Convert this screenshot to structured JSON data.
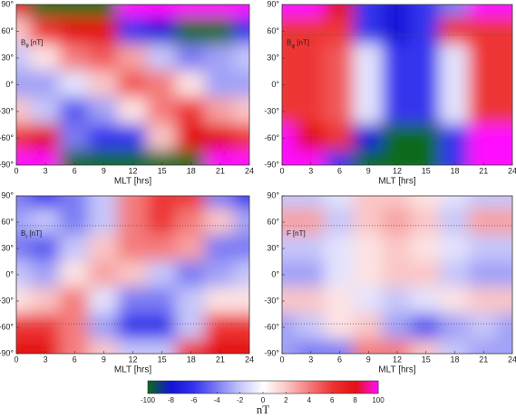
{
  "chart_data": [
    {
      "type": "heatmap",
      "title_main": "B",
      "title_sub": "θ",
      "title_unit": "[nT]",
      "xlabel": "MLT [hrs]",
      "x": [
        0,
        3,
        6,
        9,
        12,
        15,
        18,
        21,
        24
      ],
      "y": [
        90,
        60,
        30,
        0,
        -30,
        -60,
        -90
      ],
      "z": [
        [
          8,
          -100,
          -100,
          -100,
          100,
          100,
          100,
          100,
          100
        ],
        [
          2,
          6,
          8,
          8,
          -6,
          -8,
          -100,
          -100,
          -6
        ],
        [
          -2,
          1,
          4,
          5,
          3,
          -2,
          -4,
          -3,
          -2
        ],
        [
          -3,
          -3,
          -1,
          2,
          5,
          4,
          1,
          -3,
          -3
        ],
        [
          2,
          -2,
          -5,
          -3,
          1,
          4,
          6,
          3,
          2
        ],
        [
          6,
          8,
          -4,
          -6,
          -6,
          2,
          8,
          8,
          6
        ],
        [
          100,
          100,
          -100,
          -100,
          -100,
          -100,
          -100,
          100,
          100
        ]
      ],
      "xlim": [
        0,
        24
      ],
      "ylim": [
        -90,
        90
      ],
      "xticks": [
        0,
        3,
        6,
        9,
        12,
        15,
        18,
        21,
        24
      ],
      "yticks": [
        {
          "value": -90,
          "label": "-90°"
        },
        {
          "value": -60,
          "label": "-60°"
        },
        {
          "value": -30,
          "label": "-30°"
        },
        {
          "value": 0,
          "label": "0°"
        },
        {
          "value": 30,
          "label": "30°"
        },
        {
          "value": 60,
          "label": "60°"
        },
        {
          "value": 90,
          "label": "90°"
        }
      ]
    },
    {
      "type": "heatmap",
      "title_main": "B",
      "title_sub": "φ",
      "title_unit": "[nT]",
      "xlabel": "MLT [hrs]",
      "x": [
        0,
        3,
        6,
        9,
        12,
        15,
        18,
        21,
        24
      ],
      "y": [
        90,
        60,
        30,
        0,
        -30,
        -60,
        -90
      ],
      "z": [
        [
          100,
          100,
          8,
          -6,
          -8,
          -6,
          -4,
          100,
          100
        ],
        [
          6,
          6,
          6,
          -6,
          -8,
          -6,
          6,
          6,
          6
        ],
        [
          6,
          6,
          5,
          -1,
          -6,
          -6,
          -1,
          6,
          6
        ],
        [
          6,
          6,
          5,
          -1,
          -6,
          -6,
          -1,
          6,
          6
        ],
        [
          6,
          6,
          5,
          -1,
          -6,
          -6,
          -1,
          6,
          6
        ],
        [
          100,
          8,
          6,
          -8,
          -100,
          -100,
          -6,
          100,
          100
        ],
        [
          100,
          100,
          -6,
          -100,
          -100,
          -100,
          -6,
          100,
          100
        ]
      ],
      "hlines": [
        56
      ],
      "xlim": [
        0,
        24
      ],
      "ylim": [
        -90,
        90
      ],
      "xticks": [
        0,
        3,
        6,
        9,
        12,
        15,
        18,
        21,
        24
      ],
      "yticks": [
        {
          "value": -90,
          "label": "-90°"
        },
        {
          "value": -60,
          "label": "-60°"
        },
        {
          "value": -30,
          "label": "-30°"
        },
        {
          "value": 0,
          "label": "0°"
        },
        {
          "value": 30,
          "label": "30°"
        },
        {
          "value": 60,
          "label": "60°"
        },
        {
          "value": 90,
          "label": "90°"
        }
      ]
    },
    {
      "type": "heatmap",
      "title_main": "B",
      "title_sub": "r",
      "title_unit": "[nT]",
      "xlabel": "MLT [hrs]",
      "x": [
        0,
        3,
        6,
        9,
        12,
        15,
        18,
        21,
        24
      ],
      "y": [
        90,
        60,
        30,
        0,
        -30,
        -60,
        -90
      ],
      "z": [
        [
          -4,
          -6,
          -4,
          -2,
          4,
          6,
          6,
          -4,
          -6
        ],
        [
          -3,
          -2,
          -4,
          -2,
          4,
          6,
          4,
          2,
          -3
        ],
        [
          -4,
          -5,
          -2,
          2,
          4,
          4,
          3,
          -4,
          -4
        ],
        [
          -2,
          -3,
          1,
          3,
          2,
          -2,
          -4,
          -3,
          -2
        ],
        [
          1,
          2,
          4,
          -1,
          -4,
          -4,
          -2,
          1,
          1
        ],
        [
          6,
          6,
          4,
          -3,
          -6,
          -6,
          -2,
          6,
          6
        ],
        [
          8,
          8,
          4,
          2,
          -2,
          -2,
          6,
          8,
          8
        ]
      ],
      "hlines": [
        56,
        -56
      ],
      "xlim": [
        0,
        24
      ],
      "ylim": [
        -90,
        90
      ],
      "xticks": [
        0,
        3,
        6,
        9,
        12,
        15,
        18,
        21,
        24
      ],
      "yticks": [
        {
          "value": -90,
          "label": "-90°"
        },
        {
          "value": -60,
          "label": "-60°"
        },
        {
          "value": -30,
          "label": "-30°"
        },
        {
          "value": 0,
          "label": "0°"
        },
        {
          "value": 30,
          "label": "30°"
        },
        {
          "value": 60,
          "label": "60°"
        },
        {
          "value": 90,
          "label": "90°"
        }
      ]
    },
    {
      "type": "heatmap",
      "title_main": "F",
      "title_unit": "[nT]",
      "xlabel": "MLT [hrs]",
      "x": [
        0,
        3,
        6,
        9,
        12,
        15,
        18,
        21,
        24
      ],
      "y": [
        90,
        60,
        30,
        0,
        -30,
        -60,
        -90
      ],
      "z": [
        [
          -2,
          -2,
          -1,
          2,
          2,
          1,
          -1,
          -2,
          -2
        ],
        [
          3,
          3,
          -2,
          2,
          3,
          2,
          -2,
          3,
          3
        ],
        [
          -2,
          -2,
          -1,
          1,
          2,
          1,
          -1,
          -2,
          -2
        ],
        [
          -3,
          -3,
          -1,
          1,
          2,
          2,
          -2,
          -3,
          -3
        ],
        [
          2,
          2,
          1,
          -1,
          -2,
          -1,
          1,
          2,
          2
        ],
        [
          -3,
          -2,
          1,
          2,
          -3,
          -5,
          -3,
          -2,
          -3
        ],
        [
          -3,
          -4,
          -4,
          4,
          4,
          2,
          -2,
          -3,
          -3
        ]
      ],
      "hlines": [
        56,
        -56
      ],
      "xlim": [
        0,
        24
      ],
      "ylim": [
        -90,
        90
      ],
      "xticks": [
        0,
        3,
        6,
        9,
        12,
        15,
        18,
        21,
        24
      ],
      "yticks": [
        {
          "value": -90,
          "label": "-90°"
        },
        {
          "value": -60,
          "label": "-60°"
        },
        {
          "value": -30,
          "label": "-30°"
        },
        {
          "value": 0,
          "label": "0°"
        },
        {
          "value": 30,
          "label": "30°"
        },
        {
          "value": 60,
          "label": "60°"
        },
        {
          "value": 90,
          "label": "90°"
        }
      ]
    }
  ],
  "colorbar": {
    "label": "nT",
    "ticks": [
      -100,
      -8,
      -6,
      -4,
      -2,
      0,
      2,
      4,
      6,
      8,
      100
    ],
    "colors": [
      "#0b6a1c",
      "#1212d8",
      "#3434ee",
      "#7c7cf4",
      "#c6c6fa",
      "#ffffff",
      "#fac6c6",
      "#f47c7c",
      "#ee3434",
      "#e41010",
      "#ff10ff"
    ]
  }
}
